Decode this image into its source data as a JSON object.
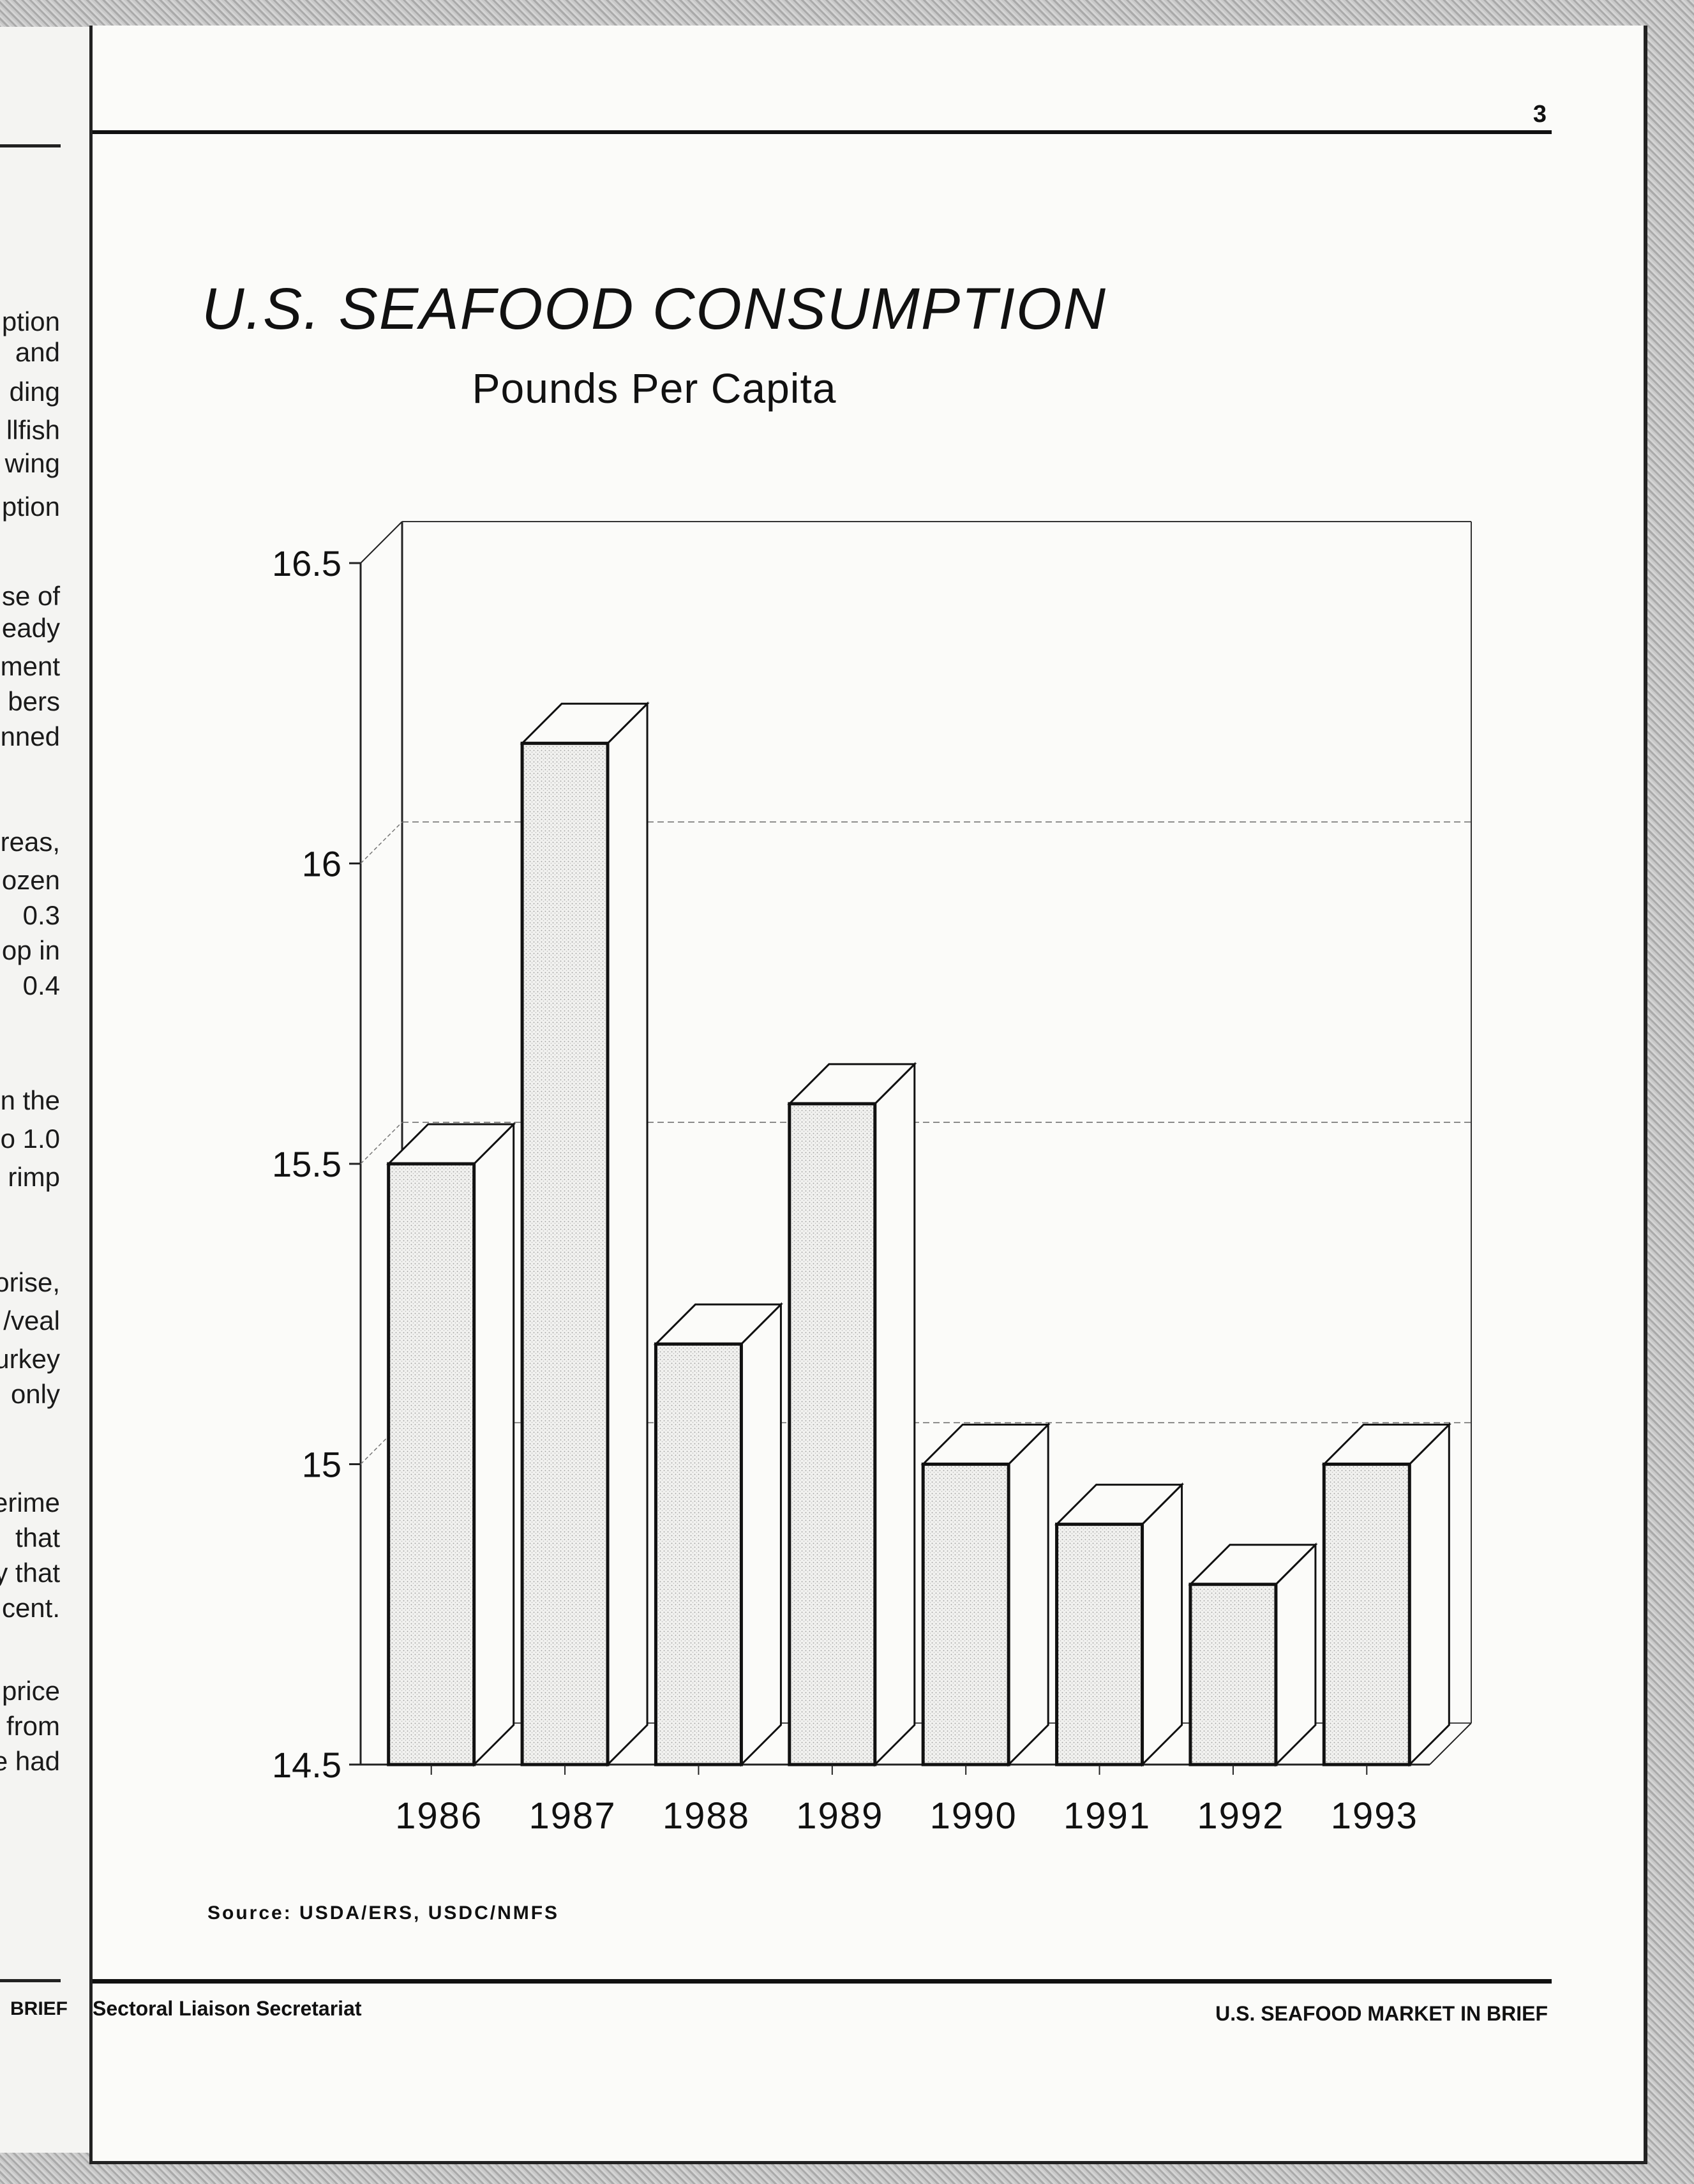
{
  "prev_page": {
    "fragments": [
      "ption",
      "and",
      "ding",
      "llfish",
      "wing",
      "ption",
      "se of",
      "eady",
      "ment",
      "bers",
      "nned",
      "reas,",
      "ozen",
      "0.3",
      "op in",
      "0.4",
      "n the",
      "o 1.0",
      "rimp",
      "orise,",
      "/veal",
      "urkey",
      "only",
      "erime",
      "that",
      "y that",
      "cent.",
      "price",
      "from",
      "e had"
    ],
    "footer": "BRIEF"
  },
  "page": {
    "page_number": "3",
    "source": "Source: USDA/ERS, USDC/NMFS",
    "footer_left": "Sectoral Liaison Secretariat",
    "footer_right": "U.S. SEAFOOD MARKET IN BRIEF"
  },
  "chart_data": {
    "type": "bar",
    "title": "U.S. SEAFOOD CONSUMPTION",
    "subtitle": "Pounds Per Capita",
    "xlabel": "",
    "ylabel": "",
    "categories": [
      "1986",
      "1987",
      "1988",
      "1989",
      "1990",
      "1991",
      "1992",
      "1993"
    ],
    "values": [
      15.5,
      16.2,
      15.2,
      15.6,
      15.0,
      14.9,
      14.8,
      15.0
    ],
    "ylim": [
      14.5,
      16.5
    ],
    "yticks": [
      "14.5",
      "15",
      "15.5",
      "16",
      "16.5"
    ],
    "grid": true,
    "style": "3d"
  }
}
